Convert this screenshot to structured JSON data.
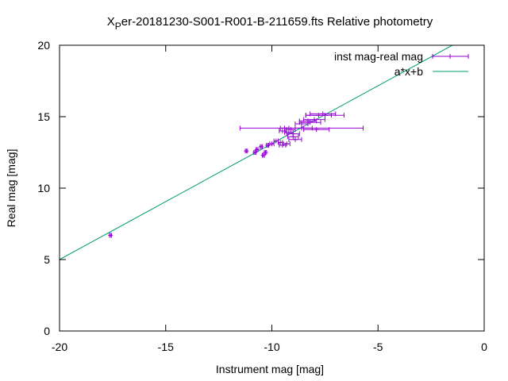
{
  "chart_data": {
    "type": "scatter",
    "title_symbol": "X",
    "title_subscript": "P",
    "title_rest": "er-20181230-S001-R001-B-211659.fts Relative photometry",
    "xlabel": "Instrument mag [mag]",
    "ylabel": "Real mag [mag]",
    "xlim": [
      -20,
      0
    ],
    "ylim": [
      0,
      20
    ],
    "xticks": [
      -20,
      -15,
      -10,
      -5,
      0
    ],
    "yticks": [
      0,
      5,
      10,
      15,
      20
    ],
    "grid": false,
    "legend_position": "top-right",
    "series": [
      {
        "name": "inst mag-real mag",
        "kind": "xerrorbars",
        "color": "#9400d3",
        "points": [
          {
            "x": -17.6,
            "y": 6.7,
            "xerr": 0.05
          },
          {
            "x": -11.2,
            "y": 12.6,
            "xerr": 0.05
          },
          {
            "x": -10.8,
            "y": 12.5,
            "xerr": 0.05
          },
          {
            "x": -10.7,
            "y": 12.7,
            "xerr": 0.05
          },
          {
            "x": -10.5,
            "y": 12.9,
            "xerr": 0.05
          },
          {
            "x": -10.4,
            "y": 12.3,
            "xerr": 0.05
          },
          {
            "x": -10.3,
            "y": 12.5,
            "xerr": 0.05
          },
          {
            "x": -10.2,
            "y": 13.0,
            "xerr": 0.05
          },
          {
            "x": -10.0,
            "y": 13.1,
            "xerr": 0.1
          },
          {
            "x": -9.8,
            "y": 13.3,
            "xerr": 0.1
          },
          {
            "x": -9.6,
            "y": 13.2,
            "xerr": 0.1
          },
          {
            "x": -9.5,
            "y": 13.0,
            "xerr": 0.15
          },
          {
            "x": -9.3,
            "y": 13.1,
            "xerr": 0.15
          },
          {
            "x": -9.5,
            "y": 14.0,
            "xerr": 0.15
          },
          {
            "x": -9.4,
            "y": 14.2,
            "xerr": 0.2
          },
          {
            "x": -9.2,
            "y": 13.9,
            "xerr": 0.2
          },
          {
            "x": -9.1,
            "y": 14.1,
            "xerr": 0.2
          },
          {
            "x": -9.0,
            "y": 13.6,
            "xerr": 0.25
          },
          {
            "x": -8.9,
            "y": 13.4,
            "xerr": 0.3
          },
          {
            "x": -9.0,
            "y": 13.8,
            "xerr": 0.3
          },
          {
            "x": -8.6,
            "y": 14.5,
            "xerr": 0.3
          },
          {
            "x": -8.5,
            "y": 14.2,
            "xerr": 0.4
          },
          {
            "x": -8.3,
            "y": 14.7,
            "xerr": 0.4
          },
          {
            "x": -8.2,
            "y": 14.6,
            "xerr": 0.5
          },
          {
            "x": -8.0,
            "y": 14.8,
            "xerr": 0.5
          },
          {
            "x": -7.9,
            "y": 14.1,
            "xerr": 0.6
          },
          {
            "x": -7.8,
            "y": 15.1,
            "xerr": 0.6
          },
          {
            "x": -7.6,
            "y": 15.2,
            "xerr": 0.6
          },
          {
            "x": -7.5,
            "y": 15.1,
            "xerr": 0.9
          },
          {
            "x": -8.6,
            "y": 14.2,
            "xerr": 2.9
          }
        ]
      },
      {
        "name": "a*x+b",
        "kind": "line",
        "color": "#009e73",
        "x": [
          -20,
          -1.5
        ],
        "y": [
          5.0,
          20.0
        ]
      }
    ]
  }
}
